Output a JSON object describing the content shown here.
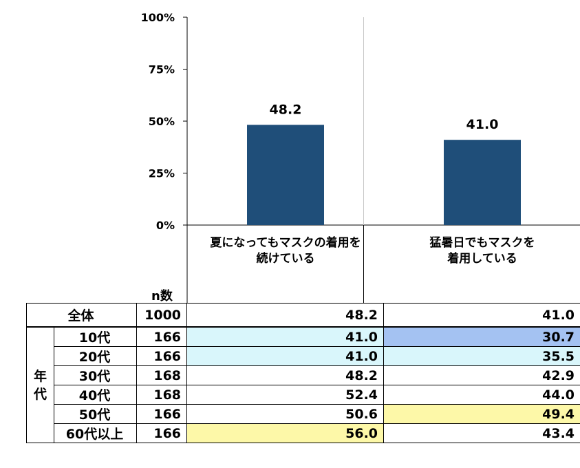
{
  "chart_data": {
    "type": "bar",
    "categories_lines": [
      [
        "夏になってもマスクの着用を",
        "続けている"
      ],
      [
        "猛暑日でもマスクを",
        "着用している"
      ]
    ],
    "values": [
      48.2,
      41.0
    ],
    "value_labels": [
      "48.2",
      "41.0"
    ],
    "ylim": [
      0,
      100
    ],
    "yticks": [
      0,
      25,
      50,
      75,
      100
    ],
    "ytick_labels": [
      "0%",
      "25%",
      "50%",
      "75%",
      "100%"
    ],
    "bar_color": "#1f4e79",
    "grid": false
  },
  "table": {
    "n_header": "n数",
    "group_label": [
      "年",
      "代"
    ],
    "total": {
      "label": "全体",
      "n": "1000",
      "v1": "48.2",
      "v2": "41.0"
    },
    "rows": [
      {
        "label": "10代",
        "n": "166",
        "v1": "41.0",
        "v2": "30.7",
        "h1": "cyan",
        "h2": "blue"
      },
      {
        "label": "20代",
        "n": "166",
        "v1": "41.0",
        "v2": "35.5",
        "h1": "cyan",
        "h2": "cyan"
      },
      {
        "label": "30代",
        "n": "168",
        "v1": "48.2",
        "v2": "42.9",
        "h1": "",
        "h2": ""
      },
      {
        "label": "40代",
        "n": "168",
        "v1": "52.4",
        "v2": "44.0",
        "h1": "",
        "h2": ""
      },
      {
        "label": "50代",
        "n": "166",
        "v1": "50.6",
        "v2": "49.4",
        "h1": "",
        "h2": "yellow"
      },
      {
        "label": "60代以上",
        "n": "166",
        "v1": "56.0",
        "v2": "43.4",
        "h1": "yellow",
        "h2": ""
      }
    ],
    "highlight_colors": {
      "cyan": "#d9f6fb",
      "blue": "#a4c2f2",
      "yellow": "#fdf8a8"
    }
  }
}
